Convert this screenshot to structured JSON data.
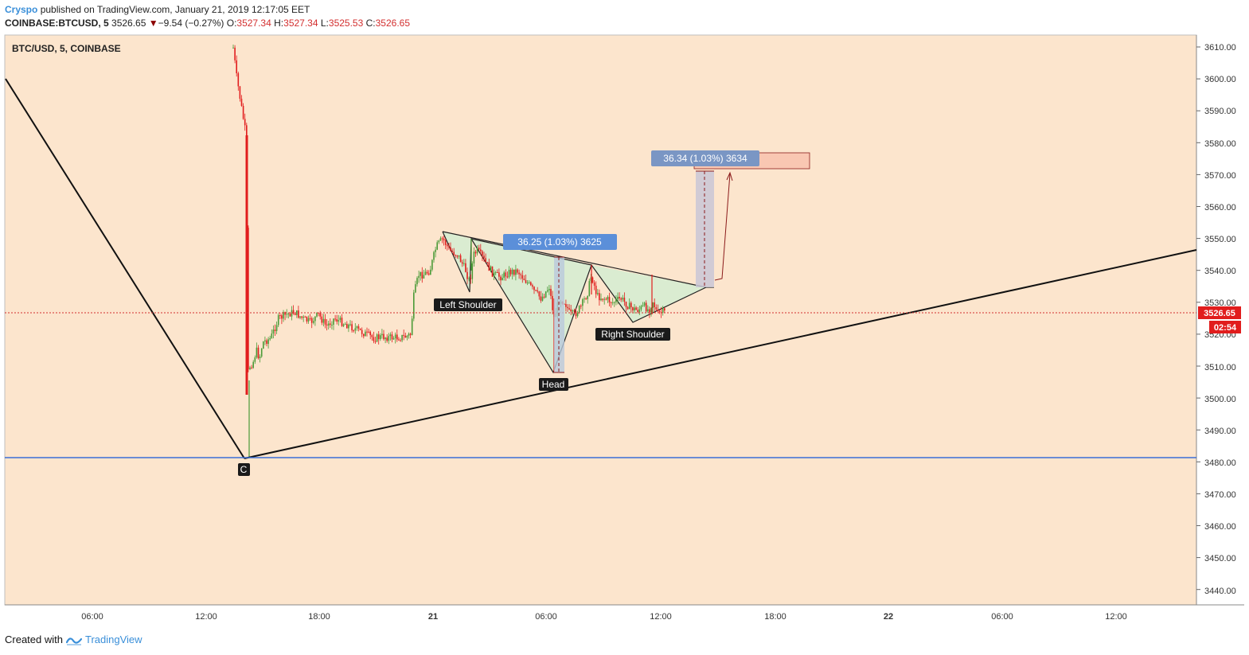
{
  "header": {
    "author": "Cryspo",
    "published_text": "published on TradingView.com, January 21, 2019 12:17:05 EET",
    "symbol": "COINBASE:BTCUSD, 5",
    "last_price": "3526.65",
    "change_arrow": "▼",
    "change": "−9.54 (−0.27%)",
    "o_label": "O:",
    "o_value": "3527.34",
    "h_label": "H:",
    "h_value": "3527.34",
    "l_label": "L:",
    "l_value": "3525.53",
    "c_label": "C:",
    "c_value": "3526.65"
  },
  "chart": {
    "legend_title": "BTC/USD, 5, COINBASE",
    "background_color": "#fce5cd",
    "up_color": "#4a9a37",
    "down_color": "#e11d1d",
    "y_axis_labels": [
      "3610.00",
      "3600.00",
      "3590.00",
      "3580.00",
      "3570.00",
      "3560.00",
      "3550.00",
      "3540.00",
      "3530.00",
      "3520.00",
      "3510.00",
      "3500.00",
      "3490.00",
      "3480.00",
      "3470.00",
      "3460.00",
      "3450.00",
      "3440.00"
    ],
    "x_axis_labels": [
      "06:00",
      "12:00",
      "18:00",
      "21",
      "06:00",
      "12:00",
      "18:00",
      "22",
      "06:00",
      "12:00"
    ],
    "price_tag": "3526.65",
    "countdown_tag": "02:54",
    "annotations": {
      "left_shoulder": "Left Shoulder",
      "head": "Head",
      "right_shoulder": "Right Shoulder",
      "point_c": "C",
      "measure_1": "36.25 (1.03%) 3625",
      "measure_2": "36.34 (1.03%) 3634"
    }
  },
  "footer": {
    "created_with": "Created with",
    "brand": "TradingView"
  }
}
